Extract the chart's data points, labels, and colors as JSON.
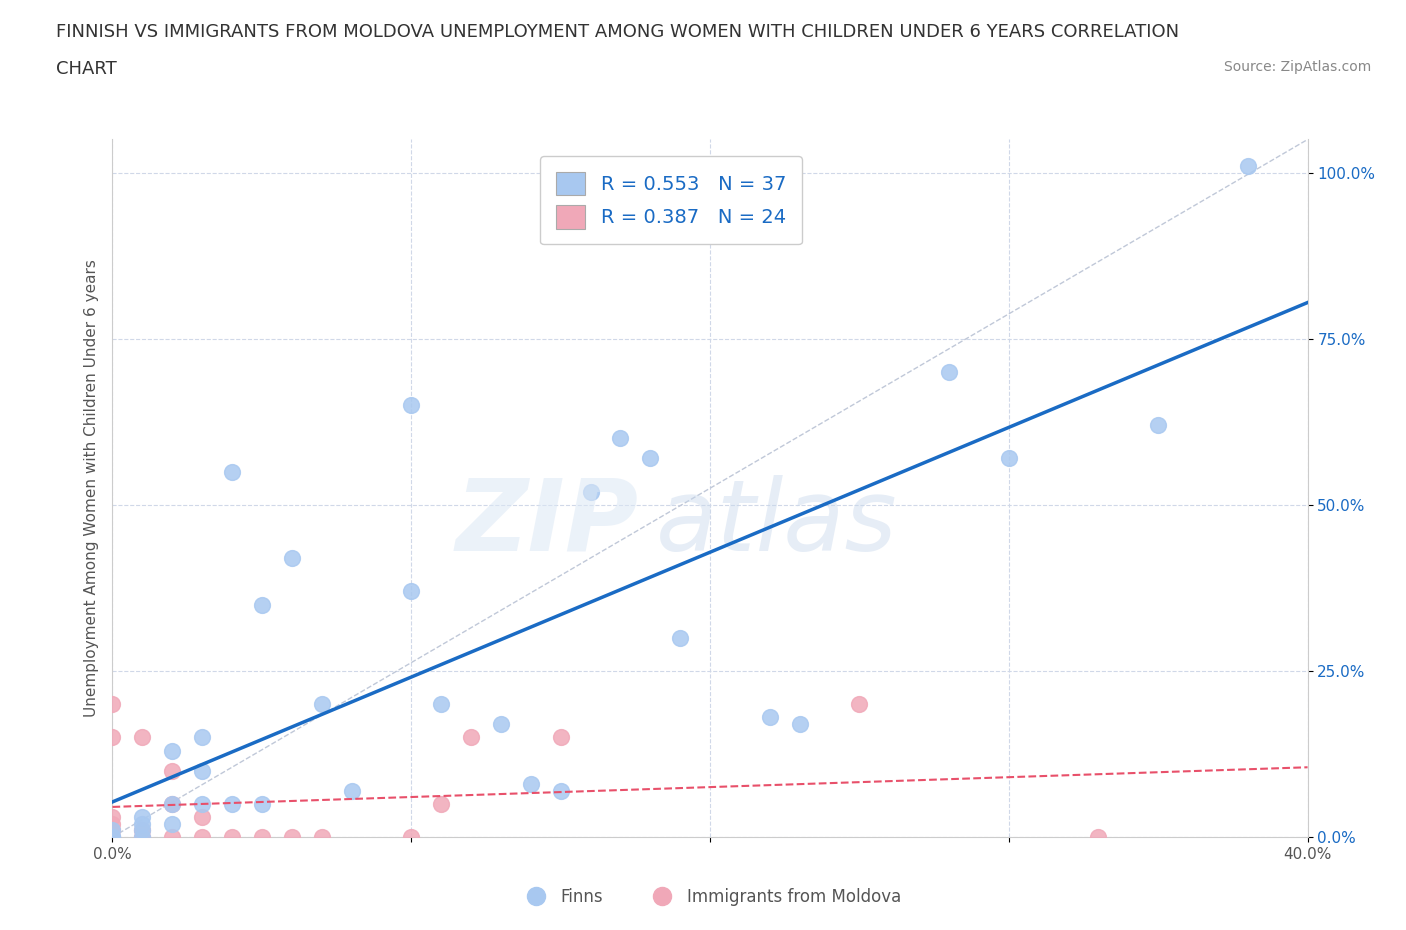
{
  "title_line1": "FINNISH VS IMMIGRANTS FROM MOLDOVA UNEMPLOYMENT AMONG WOMEN WITH CHILDREN UNDER 6 YEARS CORRELATION",
  "title_line2": "CHART",
  "source": "Source: ZipAtlas.com",
  "ylabel": "Unemployment Among Women with Children Under 6 years",
  "xlim": [
    0.0,
    0.4
  ],
  "ylim": [
    0.0,
    1.05
  ],
  "yticks": [
    0.0,
    0.25,
    0.5,
    0.75,
    1.0
  ],
  "ytick_labels": [
    "0.0%",
    "25.0%",
    "50.0%",
    "75.0%",
    "100.0%"
  ],
  "xticks": [
    0.0,
    0.1,
    0.2,
    0.3,
    0.4
  ],
  "xtick_labels": [
    "0.0%",
    "",
    "",
    "",
    "40.0%"
  ],
  "finn_R": 0.553,
  "finn_N": 37,
  "moldova_R": 0.387,
  "moldova_N": 24,
  "finn_color": "#a8c8f0",
  "moldova_color": "#f0a8b8",
  "finn_line_color": "#1a6bc4",
  "moldova_line_color": "#e8506a",
  "legend_text_color": "#1a6bc4",
  "background_color": "#ffffff",
  "grid_color": "#d0d8e8",
  "finn_scatter_x": [
    0.0,
    0.0,
    0.0,
    0.0,
    0.01,
    0.01,
    0.01,
    0.01,
    0.02,
    0.02,
    0.02,
    0.03,
    0.03,
    0.03,
    0.04,
    0.04,
    0.05,
    0.05,
    0.06,
    0.07,
    0.08,
    0.1,
    0.1,
    0.11,
    0.13,
    0.14,
    0.15,
    0.16,
    0.17,
    0.18,
    0.19,
    0.22,
    0.23,
    0.28,
    0.3,
    0.35,
    0.38
  ],
  "finn_scatter_y": [
    0.0,
    0.0,
    0.0,
    0.01,
    0.0,
    0.01,
    0.02,
    0.03,
    0.02,
    0.05,
    0.13,
    0.05,
    0.1,
    0.15,
    0.05,
    0.55,
    0.05,
    0.35,
    0.42,
    0.2,
    0.07,
    0.37,
    0.65,
    0.2,
    0.17,
    0.08,
    0.07,
    0.52,
    0.6,
    0.57,
    0.3,
    0.18,
    0.17,
    0.7,
    0.57,
    0.62,
    1.01
  ],
  "moldova_scatter_x": [
    0.0,
    0.0,
    0.0,
    0.0,
    0.0,
    0.0,
    0.01,
    0.01,
    0.01,
    0.02,
    0.02,
    0.02,
    0.03,
    0.03,
    0.04,
    0.05,
    0.06,
    0.07,
    0.1,
    0.11,
    0.12,
    0.15,
    0.25,
    0.33
  ],
  "moldova_scatter_y": [
    0.0,
    0.01,
    0.02,
    0.03,
    0.15,
    0.2,
    0.0,
    0.01,
    0.15,
    0.0,
    0.05,
    0.1,
    0.0,
    0.03,
    0.0,
    0.0,
    0.0,
    0.0,
    0.0,
    0.05,
    0.15,
    0.15,
    0.2,
    0.0
  ]
}
